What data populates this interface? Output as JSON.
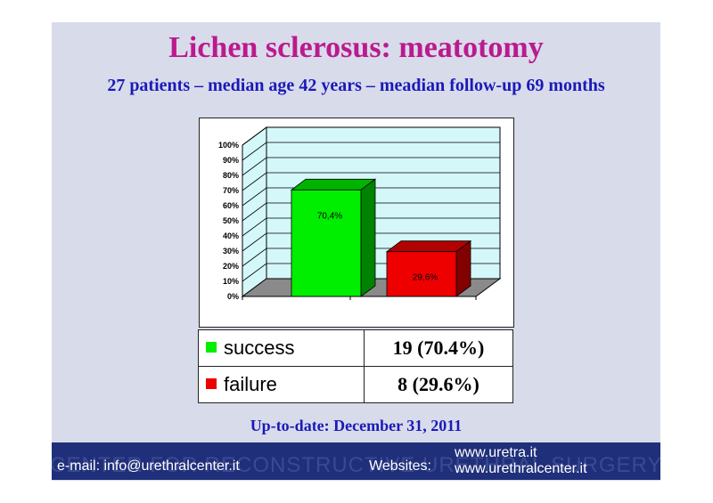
{
  "title": "Lichen sclerosus: meatotomy",
  "subtitle": "27 patients – median age 42 years – meadian follow-up 69 months",
  "update_text": "Up-to-date: December 31, 2011",
  "footer": {
    "watermark": "CENTER FOR RECONSTRUCTIVE URETHRAL SURGERY",
    "email": "e-mail: info@urethralcenter.it",
    "websites_label": "Websites:",
    "site1": "www.uretra.it",
    "site2": "www.urethralcenter.it"
  },
  "colors": {
    "success": "#00ee00",
    "failure": "#ee0000",
    "plot_bg": "#d4f7fa",
    "floor": "#8a8a8a",
    "title": "#bb1a8e",
    "subtitle": "#1a1ab8"
  },
  "legend": [
    {
      "label": "success",
      "value": "19 (70.4%)",
      "color": "#00ee00"
    },
    {
      "label": "failure",
      "value": "8 (29.6%)",
      "color": "#ee0000"
    }
  ],
  "chart_data": {
    "type": "bar",
    "categories": [
      "success",
      "failure"
    ],
    "values": [
      70.4,
      29.6
    ],
    "data_labels": [
      "70,4%",
      "29,6%"
    ],
    "y_ticks": [
      "0%",
      "10%",
      "20%",
      "30%",
      "40%",
      "50%",
      "60%",
      "70%",
      "80%",
      "90%",
      "100%"
    ],
    "ylim": [
      0,
      100
    ],
    "title": "",
    "xlabel": "",
    "ylabel": "",
    "grid": true,
    "style": "3d"
  }
}
